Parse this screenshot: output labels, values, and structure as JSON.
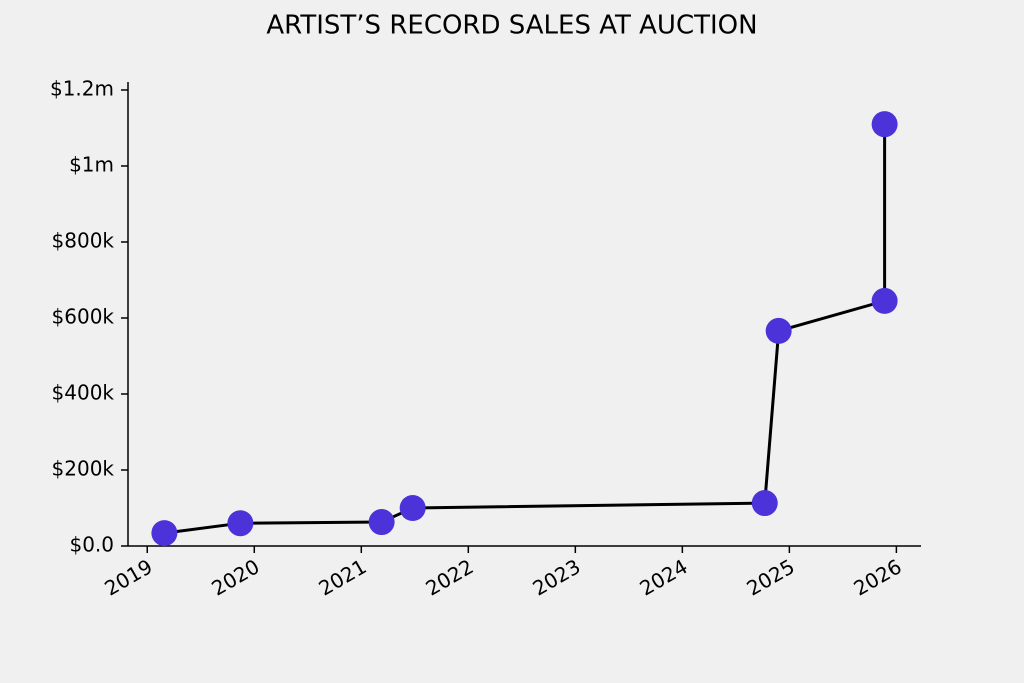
{
  "chart_data": {
    "type": "line",
    "title": "ARTIST’S RECORD SALES AT AUCTION",
    "x": [
      2019.16,
      2019.87,
      2021.19,
      2021.48,
      2024.77,
      2024.9,
      2025.89,
      2025.89
    ],
    "values": [
      34000,
      60000,
      63000,
      100000,
      113000,
      566000,
      645000,
      1110000
    ],
    "color": "#4b32d9",
    "line_color": "#000000",
    "xlim": [
      2018.82,
      2026.23
    ],
    "xticks": [
      2019,
      2020,
      2021,
      2022,
      2023,
      2024,
      2025,
      2026
    ],
    "ylim": [
      0,
      1221000
    ],
    "yticks": [
      {
        "value": 0,
        "label": "$0.0"
      },
      {
        "value": 200000,
        "label": "$200k"
      },
      {
        "value": 400000,
        "label": "$400k"
      },
      {
        "value": 600000,
        "label": "$600k"
      },
      {
        "value": 800000,
        "label": "$800k"
      },
      {
        "value": 1000000,
        "label": "$1m"
      },
      {
        "value": 1200000,
        "label": "$1.2m"
      }
    ]
  }
}
